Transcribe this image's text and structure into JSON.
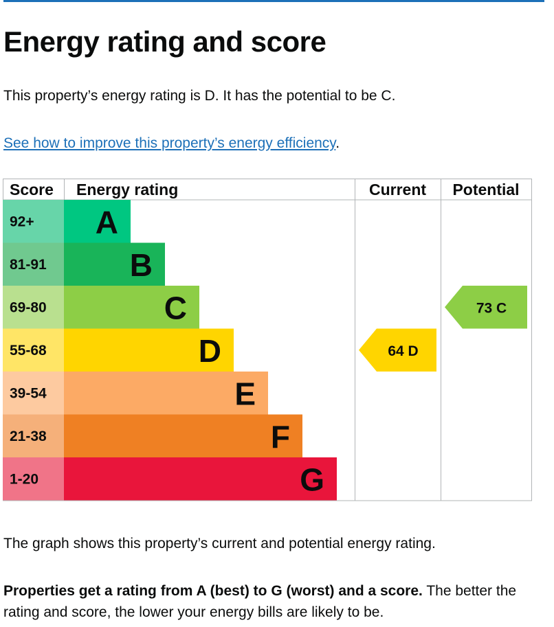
{
  "page": {
    "title": "Energy rating and score",
    "summary": "This property’s energy rating is D. It has the potential to be C.",
    "improve_link": "See how to improve this property’s energy efficiency",
    "improve_link_suffix": ".",
    "graph_note": "The graph shows this property’s current and potential energy rating.",
    "rating_note_bold": "Properties get a rating from A (best) to G (worst) and a score.",
    "rating_note_rest": " The better the rating and score, the lower your energy bills are likely to be."
  },
  "chart_data": {
    "type": "bar",
    "headers": {
      "score": "Score",
      "rating": "Energy rating",
      "current": "Current",
      "potential": "Potential"
    },
    "bands": [
      {
        "letter": "A",
        "score": "92+",
        "color": "#00c781",
        "score_bg": "#67d5a9",
        "text_color": "#0b0c0c"
      },
      {
        "letter": "B",
        "score": "81-91",
        "color": "#19b459",
        "score_bg": "#70c98f",
        "text_color": "#0b0c0c"
      },
      {
        "letter": "C",
        "score": "69-80",
        "color": "#8dce46",
        "score_bg": "#b9e08f",
        "text_color": "#0b0c0c"
      },
      {
        "letter": "D",
        "score": "55-68",
        "color": "#ffd500",
        "score_bg": "#ffe566",
        "text_color": "#0b0c0c"
      },
      {
        "letter": "E",
        "score": "39-54",
        "color": "#fcaa65",
        "score_bg": "#fdcaa0",
        "text_color": "#0b0c0c"
      },
      {
        "letter": "F",
        "score": "21-38",
        "color": "#ef8023",
        "score_bg": "#f5b07a",
        "text_color": "#0b0c0c"
      },
      {
        "letter": "G",
        "score": "1-20",
        "color": "#e9153b",
        "score_bg": "#f07488",
        "text_color": "#0b0c0c"
      }
    ],
    "current": {
      "value": 64,
      "letter": "D",
      "color": "#ffd500"
    },
    "potential": {
      "value": 73,
      "letter": "C",
      "color": "#8dce46"
    }
  }
}
